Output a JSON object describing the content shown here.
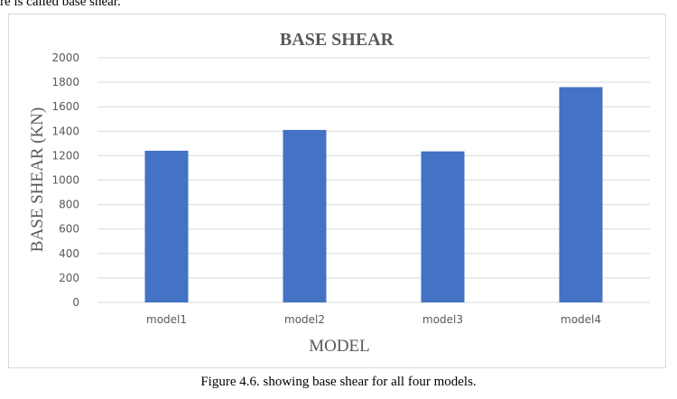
{
  "page": {
    "top_fragment": "re is called base shear.",
    "caption": "Figure 4.6. showing base shear for all four models."
  },
  "colors": {
    "bar": "#4472C4",
    "gridline": "#d9d9d9",
    "axis": "#d9d9d9",
    "text": "#595959"
  },
  "chart_data": {
    "type": "bar",
    "title": "BASE SHEAR",
    "xlabel": "MODEL",
    "ylabel": "BASE SHEAR (KN)",
    "categories": [
      "model1",
      "model2",
      "model3",
      "model4"
    ],
    "values": [
      1240,
      1410,
      1235,
      1760
    ],
    "ylim": [
      0,
      2000
    ],
    "yticks": [
      0,
      200,
      400,
      600,
      800,
      1000,
      1200,
      1400,
      1600,
      1800,
      2000
    ],
    "grid": true,
    "legend": "none"
  }
}
